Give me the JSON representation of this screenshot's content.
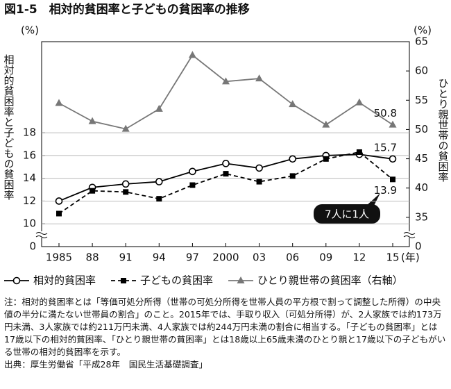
{
  "chart_data": {
    "type": "line",
    "title": "図1-5　相対的貧困率と子どもの貧困率の推移",
    "y_unit": "(%)",
    "y2_unit": "(%)",
    "ylabel": "相対的貧困率と子どもの貧困率",
    "y2label": "ひとり親世帯の貧困率",
    "x_unit": "(年)",
    "categories": [
      "1985",
      "88",
      "91",
      "94",
      "97",
      "2000",
      "03",
      "06",
      "09",
      "12",
      "15"
    ],
    "series": [
      {
        "name": "相対的貧困率",
        "color": "#000000",
        "marker": "circle",
        "dash": false,
        "values": [
          12.0,
          13.2,
          13.5,
          13.7,
          14.6,
          15.3,
          14.9,
          15.7,
          16.0,
          16.1,
          15.7
        ]
      },
      {
        "name": "子どもの貧困率",
        "color": "#000000",
        "marker": "square",
        "dash": true,
        "values": [
          10.9,
          12.9,
          12.8,
          12.2,
          13.4,
          14.4,
          13.7,
          14.2,
          15.7,
          16.3,
          13.9
        ]
      },
      {
        "name": "ひとり親世帯の貧困率（右軸）",
        "color": "#777777",
        "marker": "triangle",
        "dash": false,
        "axis": "y2",
        "values": [
          54.5,
          51.4,
          50.1,
          53.5,
          62.7,
          58.2,
          58.7,
          54.3,
          50.8,
          54.6,
          50.8
        ]
      }
    ],
    "label_last": true,
    "ylim": [
      8,
      26
    ],
    "yticks": [
      0,
      10,
      12,
      14,
      16,
      18
    ],
    "y2lim": [
      30,
      65
    ],
    "y2ticks": [
      0,
      35,
      40,
      45,
      50,
      55,
      60,
      65
    ],
    "axis_break": true,
    "grid": true,
    "annotation": "7人に1人",
    "note": "注：相対的貧困率とは「等価可処分所得（世帯の可処分所得を世帯人員の平方根で割って調整した所得）の中央値の半分に満たない世帯員の割合」のこと。2015年では、手取り収入（可処分所得）が、2人家族では約173万円未満、3人家族では約211万円未満、4人家族では約244万円未満の割合に相当する。「子どもの貧困率」とは17歳以下の相対的貧困率、「ひとり親世帯の貧困率」とは18歳以上65歳未満のひとり親と17歳以下の子どもがいる世帯の相対的貧困率を示す。",
    "source": "出典：厚生労働省「平成28年　国民生活基礎調査」"
  }
}
